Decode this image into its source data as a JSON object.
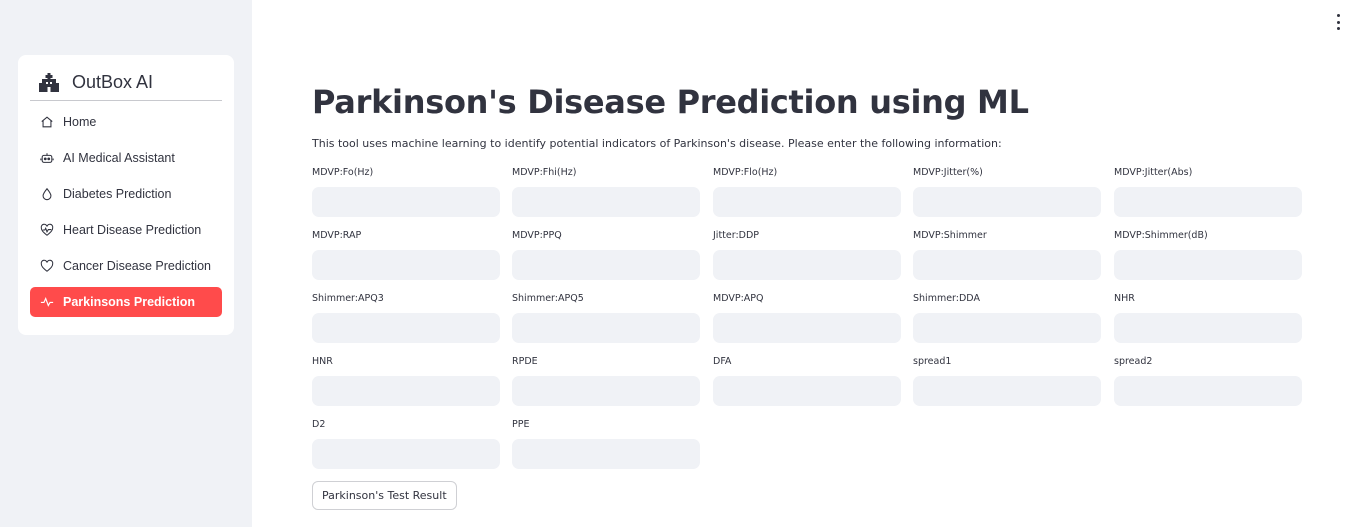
{
  "sidebar": {
    "brand": "OutBox AI",
    "items": [
      {
        "label": "Home",
        "icon": "house-icon",
        "active": false
      },
      {
        "label": "AI Medical Assistant",
        "icon": "robot-icon",
        "active": false
      },
      {
        "label": "Diabetes Prediction",
        "icon": "droplet-icon",
        "active": false
      },
      {
        "label": "Heart Disease Prediction",
        "icon": "heart-pulse-icon",
        "active": false
      },
      {
        "label": "Cancer Disease Prediction",
        "icon": "heart-icon",
        "active": false
      },
      {
        "label": "Parkinsons Prediction",
        "icon": "activity-icon",
        "active": true
      }
    ],
    "active_color": "#ff4b4b"
  },
  "main": {
    "title": "Parkinson's Disease Prediction using ML",
    "description": "This tool uses machine learning to identify potential indicators of Parkinson's disease. Please enter the following information:",
    "fields": [
      {
        "label": "MDVP:Fo(Hz)",
        "value": ""
      },
      {
        "label": "MDVP:Fhi(Hz)",
        "value": ""
      },
      {
        "label": "MDVP:Flo(Hz)",
        "value": ""
      },
      {
        "label": "MDVP:Jitter(%)",
        "value": ""
      },
      {
        "label": "MDVP:Jitter(Abs)",
        "value": ""
      },
      {
        "label": "MDVP:RAP",
        "value": ""
      },
      {
        "label": "MDVP:PPQ",
        "value": ""
      },
      {
        "label": "Jitter:DDP",
        "value": ""
      },
      {
        "label": "MDVP:Shimmer",
        "value": ""
      },
      {
        "label": "MDVP:Shimmer(dB)",
        "value": ""
      },
      {
        "label": "Shimmer:APQ3",
        "value": ""
      },
      {
        "label": "Shimmer:APQ5",
        "value": ""
      },
      {
        "label": "MDVP:APQ",
        "value": ""
      },
      {
        "label": "Shimmer:DDA",
        "value": ""
      },
      {
        "label": "NHR",
        "value": ""
      },
      {
        "label": "HNR",
        "value": ""
      },
      {
        "label": "RPDE",
        "value": ""
      },
      {
        "label": "DFA",
        "value": ""
      },
      {
        "label": "spread1",
        "value": ""
      },
      {
        "label": "spread2",
        "value": ""
      },
      {
        "label": "D2",
        "value": ""
      },
      {
        "label": "PPE",
        "value": ""
      }
    ],
    "result_button": "Parkinson's Test Result"
  },
  "toolbar": {
    "menu_icon": "kebab-menu-icon"
  }
}
